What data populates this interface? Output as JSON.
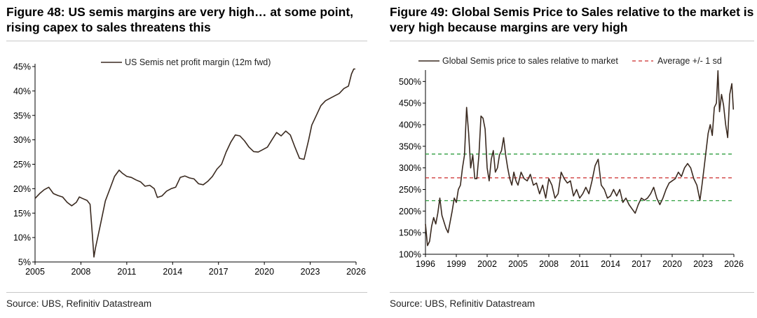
{
  "fig48": {
    "title": "Figure 48: US semis margins are very high… at some point, rising capex to sales threatens this",
    "source": "Source: UBS, Refinitiv Datastream"
  },
  "fig49": {
    "title": "Figure 49: Global Semis Price to Sales relative to the market is very high because margins are very high",
    "source": "Source: UBS, Refinitiv Datastream"
  },
  "chart_data": [
    {
      "type": "line",
      "title": "",
      "xlabel": "",
      "ylabel": "",
      "xlim": [
        2005,
        2026
      ],
      "ylim": [
        5,
        45
      ],
      "x_ticks": [
        "2005",
        "2008",
        "2011",
        "2014",
        "2017",
        "2020",
        "2023",
        "2026"
      ],
      "y_ticks": [
        "5%",
        "10%",
        "15%",
        "20%",
        "25%",
        "30%",
        "35%",
        "40%",
        "45%"
      ],
      "legend_position": "top-center",
      "grid": false,
      "colors": {
        "line": "#3a2a20"
      },
      "series": [
        {
          "name": "US Semis net profit margin (12m fwd)",
          "x": [
            2005.0,
            2005.3,
            2005.6,
            2005.9,
            2006.2,
            2006.5,
            2006.8,
            2007.1,
            2007.4,
            2007.7,
            2007.9,
            2008.1,
            2008.4,
            2008.6,
            2008.75,
            2008.85,
            2008.95,
            2009.1,
            2009.3,
            2009.6,
            2009.9,
            2010.2,
            2010.5,
            2010.7,
            2011.0,
            2011.3,
            2011.6,
            2011.9,
            2012.2,
            2012.5,
            2012.8,
            2013.0,
            2013.3,
            2013.6,
            2013.9,
            2014.2,
            2014.5,
            2014.8,
            2015.1,
            2015.4,
            2015.7,
            2016.0,
            2016.3,
            2016.6,
            2016.9,
            2017.2,
            2017.5,
            2017.8,
            2018.1,
            2018.4,
            2018.7,
            2019.0,
            2019.3,
            2019.6,
            2019.9,
            2020.2,
            2020.5,
            2020.8,
            2021.1,
            2021.4,
            2021.7,
            2022.0,
            2022.3,
            2022.6,
            2022.9,
            2023.1,
            2023.4,
            2023.7,
            2024.0,
            2024.3,
            2024.6,
            2024.9,
            2025.2,
            2025.5,
            2025.7,
            2025.85,
            2025.95
          ],
          "values": [
            18.0,
            19.0,
            19.8,
            20.3,
            19.0,
            18.6,
            18.3,
            17.2,
            16.5,
            17.2,
            18.3,
            18.0,
            17.6,
            16.8,
            10.5,
            6.0,
            7.8,
            10.0,
            13.0,
            17.5,
            20.0,
            22.5,
            23.8,
            23.2,
            22.5,
            22.3,
            21.8,
            21.4,
            20.5,
            20.7,
            20.0,
            18.2,
            18.5,
            19.5,
            20.0,
            20.3,
            22.3,
            22.6,
            22.2,
            22.0,
            21.0,
            20.8,
            21.5,
            22.5,
            24.0,
            25.0,
            27.5,
            29.5,
            31.0,
            30.8,
            29.8,
            28.5,
            27.6,
            27.5,
            28.0,
            28.5,
            30.0,
            31.5,
            30.8,
            31.8,
            31.0,
            28.5,
            26.2,
            26.0,
            30.0,
            33.0,
            35.0,
            37.0,
            38.0,
            38.5,
            39.0,
            39.5,
            40.5,
            41.0,
            43.5,
            44.5,
            44.5
          ]
        }
      ]
    },
    {
      "type": "line",
      "title": "",
      "xlabel": "",
      "ylabel": "",
      "xlim": [
        1996,
        2026
      ],
      "ylim": [
        100,
        520
      ],
      "x_ticks": [
        "1996",
        "1999",
        "2002",
        "2005",
        "2008",
        "2011",
        "2014",
        "2017",
        "2020",
        "2023",
        "2026"
      ],
      "y_ticks": [
        "100%",
        "150%",
        "200%",
        "250%",
        "300%",
        "350%",
        "400%",
        "450%",
        "500%"
      ],
      "legend_position": "top-center",
      "grid": false,
      "colors": {
        "line": "#3a2a20",
        "average": "#cc2a2a",
        "sd_band": "#2e9e3e"
      },
      "reference_lines": {
        "average": 277,
        "upper_sd": 332,
        "lower_sd": 224
      },
      "series": [
        {
          "name": "Global Semis price to sales relative to market",
          "x": [
            1996.0,
            1996.2,
            1996.4,
            1996.6,
            1996.8,
            1997.0,
            1997.2,
            1997.4,
            1997.6,
            1997.8,
            1998.0,
            1998.2,
            1998.4,
            1998.6,
            1998.8,
            1999.0,
            1999.2,
            1999.4,
            1999.6,
            1999.8,
            2000.0,
            2000.2,
            2000.4,
            2000.6,
            2000.8,
            2001.0,
            2001.2,
            2001.4,
            2001.6,
            2001.8,
            2002.0,
            2002.2,
            2002.4,
            2002.6,
            2002.8,
            2003.0,
            2003.2,
            2003.4,
            2003.6,
            2003.8,
            2004.0,
            2004.2,
            2004.4,
            2004.6,
            2004.8,
            2005.0,
            2005.3,
            2005.6,
            2005.9,
            2006.2,
            2006.5,
            2006.8,
            2007.1,
            2007.4,
            2007.7,
            2008.0,
            2008.3,
            2008.6,
            2008.9,
            2009.2,
            2009.5,
            2009.8,
            2010.1,
            2010.4,
            2010.7,
            2011.0,
            2011.3,
            2011.6,
            2011.9,
            2012.2,
            2012.5,
            2012.8,
            2013.1,
            2013.4,
            2013.7,
            2014.0,
            2014.3,
            2014.6,
            2014.9,
            2015.2,
            2015.5,
            2015.8,
            2016.1,
            2016.4,
            2016.7,
            2017.0,
            2017.3,
            2017.6,
            2017.9,
            2018.2,
            2018.5,
            2018.8,
            2019.1,
            2019.4,
            2019.7,
            2020.0,
            2020.3,
            2020.6,
            2020.9,
            2021.2,
            2021.5,
            2021.8,
            2022.1,
            2022.4,
            2022.7,
            2022.9,
            2023.1,
            2023.3,
            2023.5,
            2023.7,
            2023.9,
            2024.1,
            2024.3,
            2024.45,
            2024.6,
            2024.8,
            2025.0,
            2025.2,
            2025.4,
            2025.6,
            2025.8,
            2025.95
          ],
          "values": [
            170,
            120,
            130,
            165,
            185,
            170,
            195,
            230,
            190,
            175,
            160,
            150,
            175,
            200,
            230,
            220,
            250,
            260,
            300,
            330,
            440,
            380,
            300,
            330,
            275,
            275,
            330,
            420,
            415,
            390,
            300,
            270,
            320,
            340,
            290,
            300,
            330,
            340,
            370,
            330,
            300,
            275,
            260,
            290,
            270,
            260,
            290,
            275,
            270,
            285,
            260,
            265,
            240,
            260,
            230,
            275,
            260,
            230,
            240,
            290,
            275,
            265,
            270,
            235,
            250,
            230,
            240,
            255,
            240,
            270,
            305,
            320,
            260,
            250,
            230,
            235,
            250,
            235,
            250,
            220,
            230,
            215,
            205,
            195,
            215,
            230,
            225,
            230,
            240,
            255,
            230,
            215,
            230,
            250,
            265,
            270,
            275,
            290,
            280,
            300,
            310,
            300,
            275,
            260,
            225,
            260,
            300,
            340,
            380,
            400,
            375,
            440,
            450,
            525,
            430,
            470,
            445,
            400,
            370,
            470,
            495,
            435
          ]
        },
        {
          "name": "Average +/- 1 sd",
          "values": []
        }
      ]
    }
  ]
}
